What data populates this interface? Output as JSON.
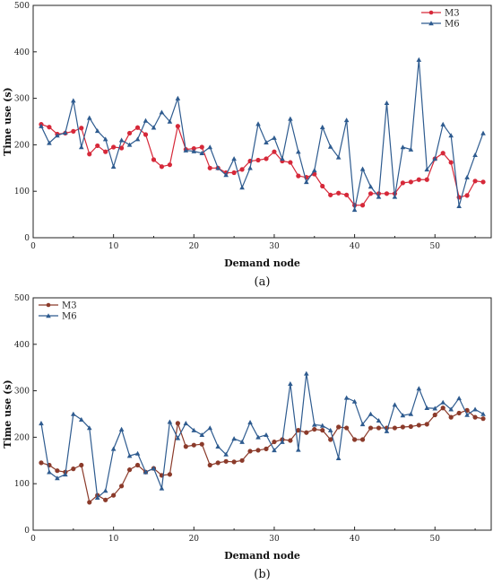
{
  "chart_data": [
    {
      "type": "line",
      "panel_label": "(a)",
      "xlabel": "Demand node",
      "ylabel": "Time use (s)",
      "xlim": [
        0,
        57
      ],
      "ylim": [
        0,
        500
      ],
      "xticks": [
        0,
        10,
        20,
        30,
        40,
        50
      ],
      "yticks": [
        0,
        100,
        200,
        300,
        400,
        500
      ],
      "legend_position": "top-right",
      "x": [
        1,
        2,
        3,
        4,
        5,
        6,
        7,
        8,
        9,
        10,
        11,
        12,
        13,
        14,
        15,
        16,
        17,
        18,
        19,
        20,
        21,
        22,
        23,
        24,
        25,
        26,
        27,
        28,
        29,
        30,
        31,
        32,
        33,
        34,
        35,
        36,
        37,
        38,
        39,
        40,
        41,
        42,
        43,
        44,
        45,
        46,
        47,
        48,
        49,
        50,
        51,
        52,
        53,
        54,
        55,
        56
      ],
      "series": [
        {
          "name": "M3",
          "color": "#d62839",
          "marker": "circle",
          "values": [
            244,
            238,
            223,
            225,
            229,
            236,
            180,
            198,
            185,
            195,
            193,
            225,
            237,
            222,
            168,
            153,
            157,
            240,
            190,
            192,
            195,
            150,
            150,
            140,
            140,
            147,
            165,
            167,
            170,
            185,
            165,
            162,
            133,
            130,
            137,
            111,
            92,
            96,
            92,
            70,
            70,
            95,
            95,
            95,
            95,
            118,
            120,
            125,
            125,
            170,
            182,
            162,
            87,
            91,
            122,
            120
          ]
        },
        {
          "name": "M6",
          "color": "#2e5b8f",
          "marker": "triangle",
          "values": [
            240,
            204,
            220,
            226,
            295,
            195,
            258,
            230,
            212,
            153,
            210,
            200,
            212,
            252,
            237,
            270,
            250,
            300,
            188,
            186,
            182,
            195,
            150,
            135,
            170,
            108,
            150,
            245,
            205,
            215,
            170,
            256,
            185,
            120,
            145,
            238,
            196,
            173,
            253,
            60,
            148,
            110,
            88,
            290,
            88,
            195,
            190,
            383,
            147,
            170,
            244,
            220,
            68,
            130,
            178,
            225
          ]
        }
      ]
    },
    {
      "type": "line",
      "panel_label": "(b)",
      "xlabel": "Demand node",
      "ylabel": "Time use (s)",
      "xlim": [
        0,
        57
      ],
      "ylim": [
        0,
        500
      ],
      "xticks": [
        0,
        10,
        20,
        30,
        40,
        50
      ],
      "yticks": [
        0,
        100,
        200,
        300,
        400,
        500
      ],
      "legend_position": "top-left",
      "x": [
        1,
        2,
        3,
        4,
        5,
        6,
        7,
        8,
        9,
        10,
        11,
        12,
        13,
        14,
        15,
        16,
        17,
        18,
        19,
        20,
        21,
        22,
        23,
        24,
        25,
        26,
        27,
        28,
        29,
        30,
        31,
        32,
        33,
        34,
        35,
        36,
        37,
        38,
        39,
        40,
        41,
        42,
        43,
        44,
        45,
        46,
        47,
        48,
        49,
        50,
        51,
        52,
        53,
        54,
        55,
        56
      ],
      "series": [
        {
          "name": "M3",
          "color": "#8b3a2a",
          "marker": "circle",
          "values": [
            145,
            140,
            128,
            125,
            132,
            140,
            60,
            75,
            65,
            75,
            95,
            130,
            140,
            125,
            133,
            118,
            120,
            230,
            180,
            183,
            185,
            140,
            145,
            148,
            147,
            150,
            170,
            172,
            175,
            190,
            195,
            193,
            215,
            210,
            217,
            215,
            195,
            222,
            220,
            195,
            195,
            220,
            220,
            220,
            220,
            222,
            223,
            226,
            228,
            248,
            263,
            243,
            252,
            258,
            243,
            240
          ]
        },
        {
          "name": "M6",
          "color": "#2e5b8f",
          "marker": "triangle",
          "values": [
            230,
            125,
            112,
            120,
            250,
            238,
            220,
            70,
            85,
            175,
            217,
            160,
            165,
            125,
            133,
            90,
            233,
            198,
            230,
            215,
            205,
            220,
            180,
            163,
            197,
            190,
            232,
            200,
            205,
            172,
            190,
            315,
            173,
            337,
            227,
            225,
            215,
            155,
            285,
            277,
            228,
            250,
            236,
            213,
            270,
            247,
            250,
            305,
            263,
            262,
            275,
            260,
            284,
            248,
            260,
            250
          ]
        }
      ]
    }
  ]
}
